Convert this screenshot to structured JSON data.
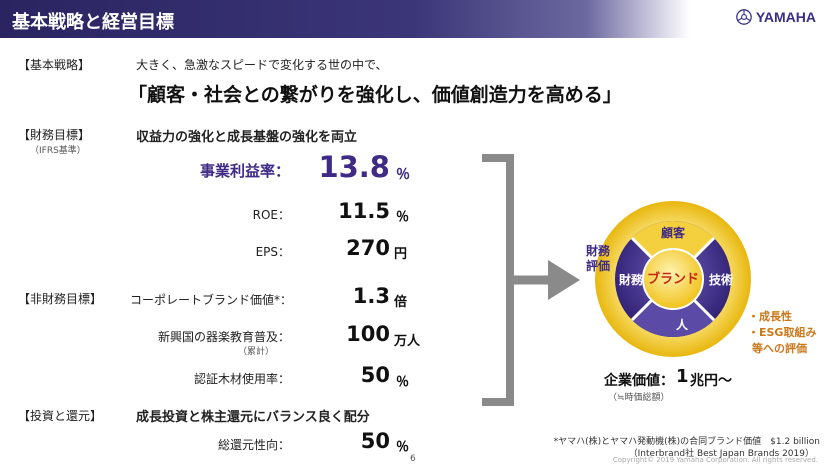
{
  "header": {
    "title": "基本戦略と経営目標",
    "brand": "YAMAHA"
  },
  "strategy": {
    "label": "【基本戦略】",
    "intro": "大きく、急激なスピードで変化する世の中で、",
    "slogan": "「顧客・社会との繋がりを強化し、価値創造力を高める」"
  },
  "financial": {
    "label": "【財務目標】",
    "sublabel": "（IFRS基準）",
    "heading": "収益力の強化と成長基盤の強化を両立",
    "items": [
      {
        "label": "事業利益率：",
        "value": "13.8",
        "unit": "％"
      },
      {
        "label": "ROE：",
        "value": "11.5",
        "unit": "％"
      },
      {
        "label": "EPS：",
        "value": "270",
        "unit": "円"
      }
    ]
  },
  "non_financial": {
    "label": "【非財務目標】",
    "items": [
      {
        "label": "コーポレートブランド価値*：",
        "value": "1.3",
        "unit": "倍"
      },
      {
        "label": "新興国の器楽教育普及：",
        "sublabel": "（累計）",
        "value": "100",
        "unit": "万人"
      },
      {
        "label": "認証木材使用率：",
        "value": "50",
        "unit": "％"
      }
    ]
  },
  "investment": {
    "label": "【投資と還元】",
    "heading": "成長投資と株主還元にバランス良く配分",
    "items": [
      {
        "label": "総還元性向：",
        "value": "50",
        "unit": "％"
      }
    ]
  },
  "diagram": {
    "center": "ブランド",
    "top": "顧客",
    "left": "財務",
    "right": "技術",
    "bottom": "人",
    "left_outer": "財務\n評価",
    "right_outer_items": [
      "・成長性",
      "・ESG取組み"
    ],
    "right_outer_tail": "等への評価",
    "enterprise_value_label": "企業価値：",
    "enterprise_value_num": "1",
    "enterprise_value_unit": "兆円～",
    "enterprise_value_note": "（≒時価総額）"
  },
  "footer": {
    "footnote_line1": "*ヤマハ(株)とヤマハ発動機(株)の合同ブランド価値　$1.2 billion",
    "footnote_line2": "（Interbrand社 Best Japan Brands 2019）",
    "copyright": "Copyright© 2019 Yamaha Corporation. All rights reserved.",
    "page": "6"
  },
  "colors": {
    "purple": "#3f2a86",
    "gold": "#f2c21b",
    "orange_text": "#c9781a",
    "gray_arrow": "#8a8a8a"
  }
}
